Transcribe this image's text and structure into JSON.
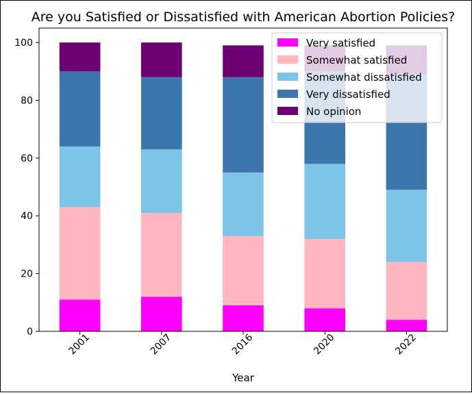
{
  "chart_data": {
    "type": "bar",
    "stacked": true,
    "title": "Are you Satisfied or Dissatisfied with American Abortion Policies?",
    "xlabel": "Year",
    "ylabel": "",
    "ylim": [
      0,
      105
    ],
    "yticks": [
      0,
      20,
      40,
      60,
      80,
      100
    ],
    "categories": [
      "2001",
      "2007",
      "2016",
      "2020",
      "2022"
    ],
    "series": [
      {
        "name": "Very satisfied",
        "color": "#ff00ff",
        "values": [
          11,
          12,
          9,
          8,
          4
        ]
      },
      {
        "name": "Somewhat satisfied",
        "color": "#ffb6c1",
        "values": [
          32,
          29,
          24,
          24,
          20
        ]
      },
      {
        "name": "Somewhat dissatisfied",
        "color": "#7cc5e8",
        "values": [
          21,
          22,
          22,
          26,
          25
        ]
      },
      {
        "name": "Very dissatisfied",
        "color": "#3c76ad",
        "values": [
          26,
          25,
          33,
          32,
          40
        ]
      },
      {
        "name": "No opinion",
        "color": "#6d0072",
        "values": [
          10,
          12,
          11,
          9,
          10
        ]
      }
    ],
    "legend": "top-right",
    "grid": false
  }
}
